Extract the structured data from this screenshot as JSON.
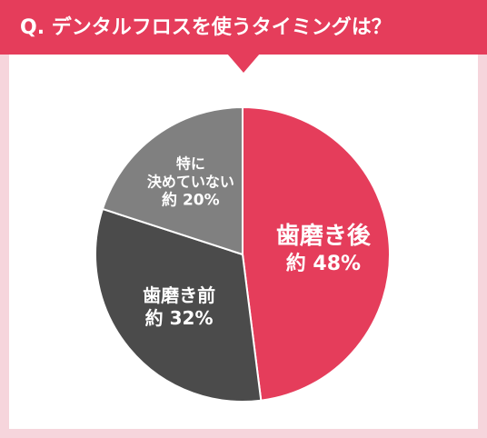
{
  "chart_data": {
    "type": "pie",
    "title": "Q. デンタルフロスを使うタイミングは？",
    "categories": [
      "歯磨き後",
      "歯磨き前",
      "特に\n決めていない"
    ],
    "values": [
      48,
      32,
      20
    ],
    "value_labels": [
      "約 48%",
      "約 32%",
      "約 20%"
    ],
    "colors": [
      "#e53d5b",
      "#4b4b4b",
      "#808080"
    ]
  }
}
